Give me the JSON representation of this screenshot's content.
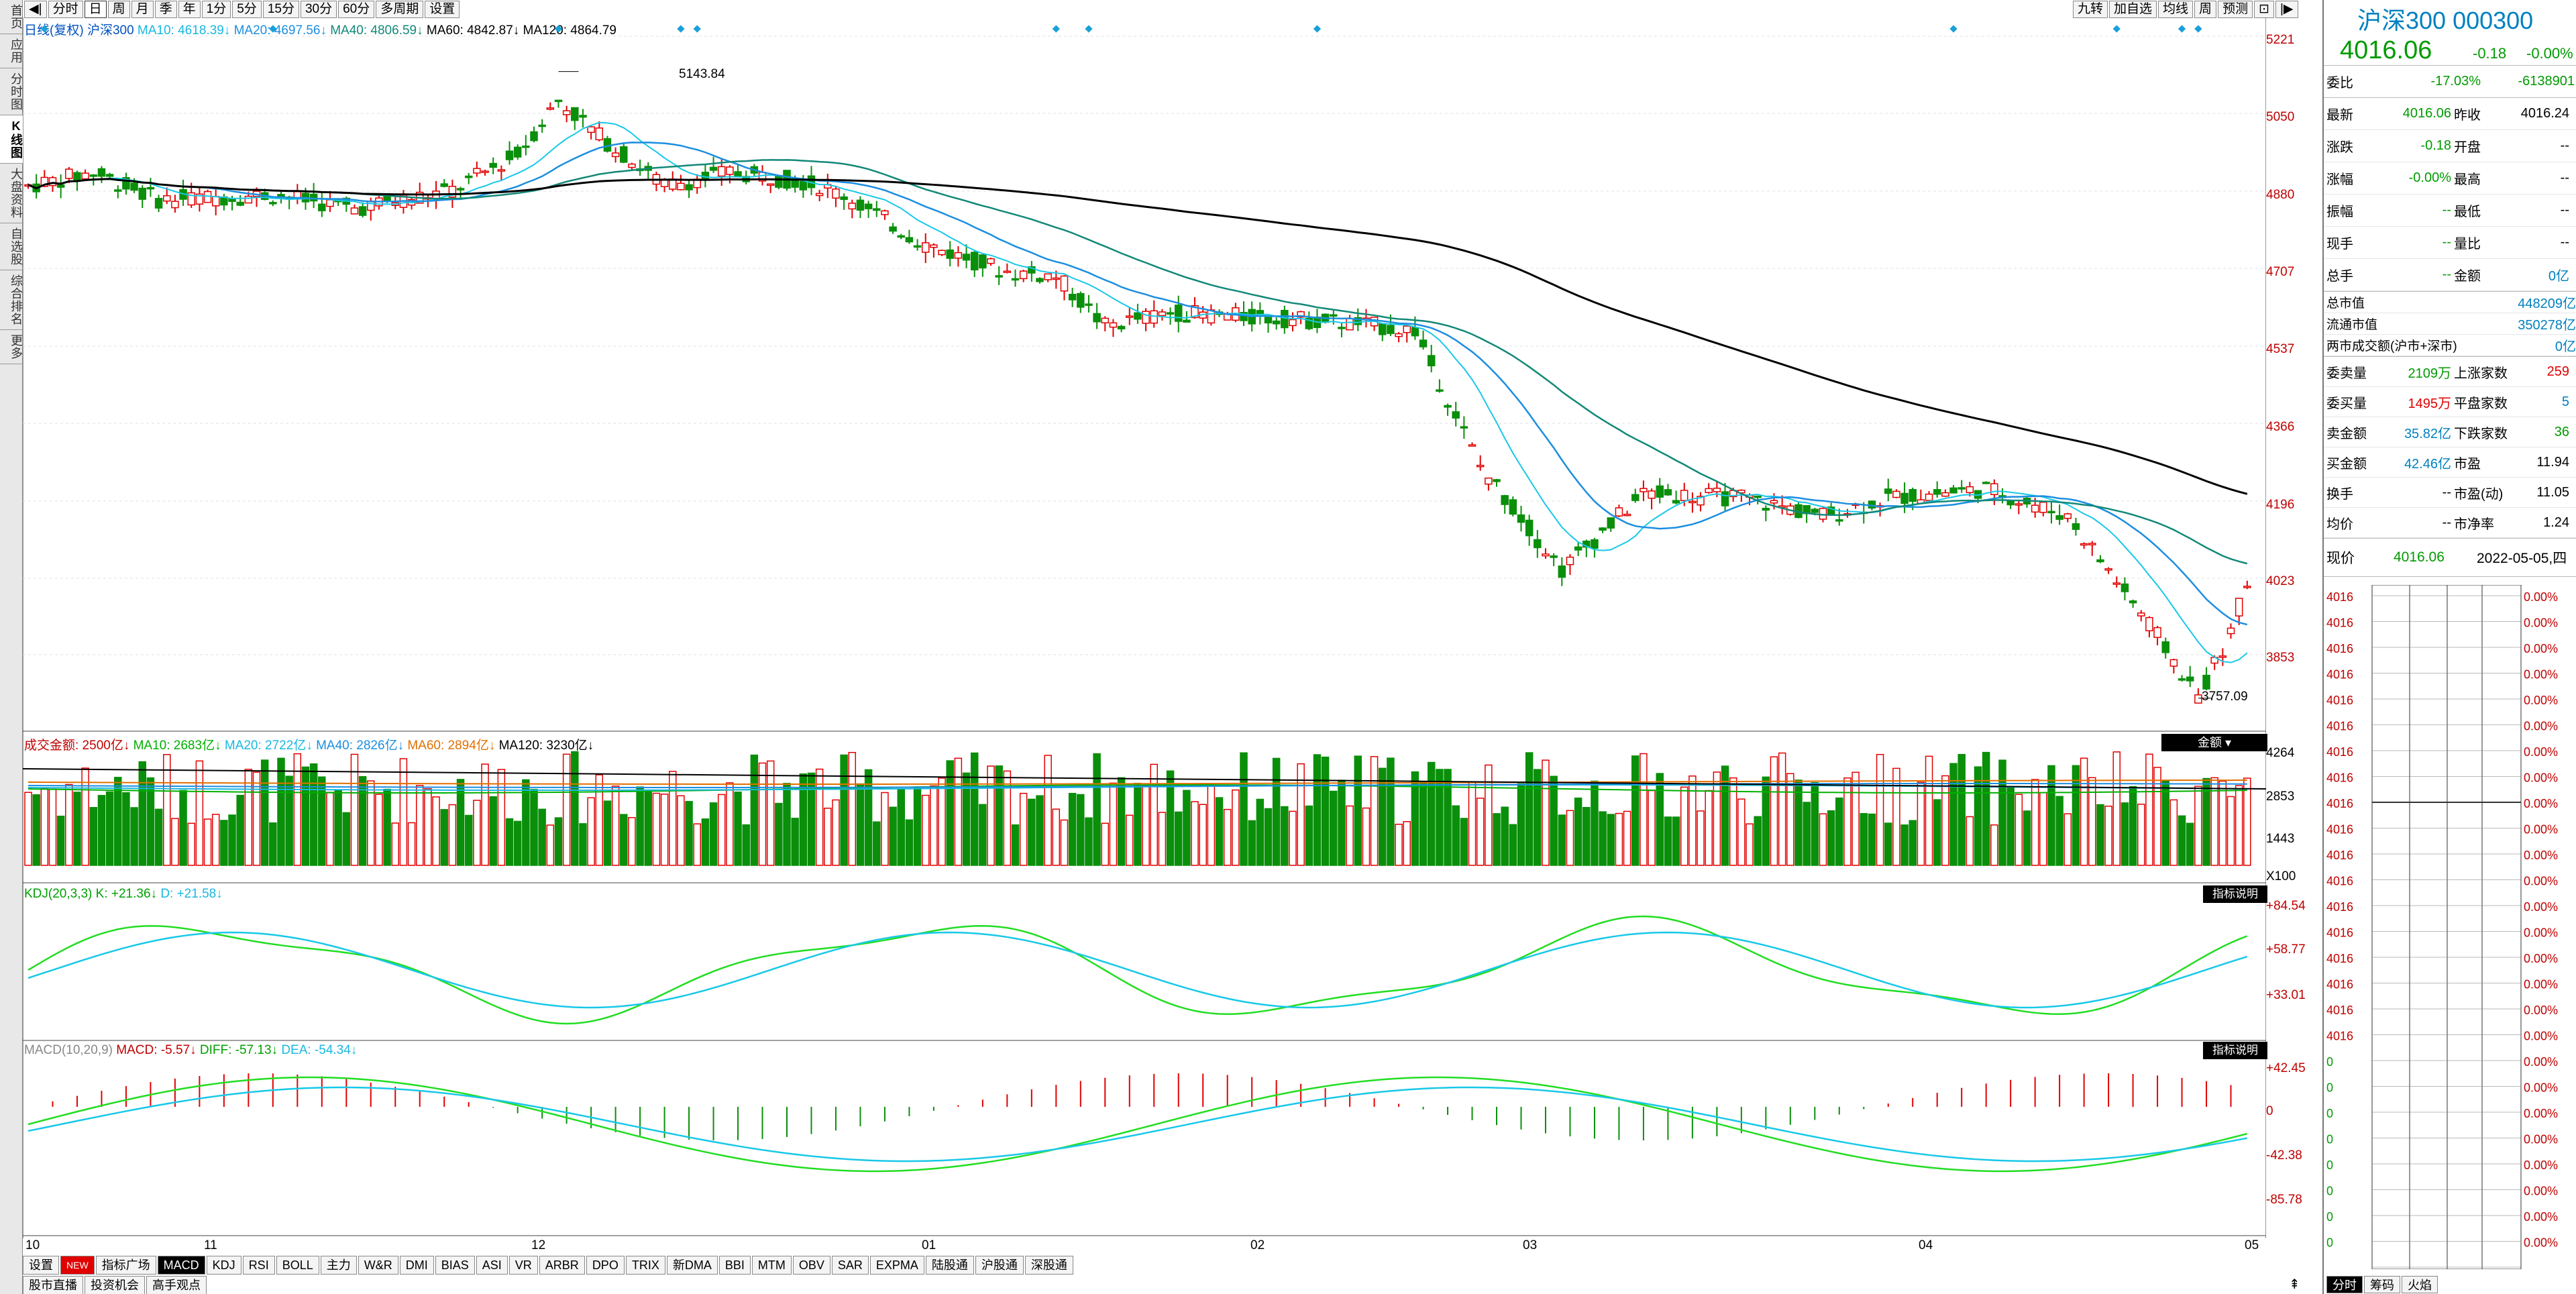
{
  "left_tabs": [
    "首页",
    "应用",
    "分时图",
    "K线图",
    "大盘资料",
    "自选股",
    "综合排名",
    "更多"
  ],
  "top_toolbar": {
    "periods": [
      "分时",
      "日",
      "周",
      "月",
      "季",
      "年",
      "1分",
      "5分",
      "15分",
      "30分",
      "60分",
      "多周期",
      "设置"
    ],
    "selected": "日",
    "right_buttons": [
      "九转",
      "加自选",
      "均线",
      "周",
      "预测"
    ]
  },
  "main_legend": {
    "prefix": "日线(复权)",
    "name": "沪深300",
    "ma10": "MA10: 4618.39",
    "ma20": "MA20: 4697.56",
    "ma40": "MA40: 4806.59",
    "ma60": "MA60: 4842.87",
    "ma120": "MA120: 4864.79"
  },
  "price_axis": [
    "5221",
    "5050",
    "4880",
    "4707",
    "4537",
    "4366",
    "4196",
    "4023",
    "3853"
  ],
  "annotations": {
    "high": "5143.84",
    "low": "3757.09"
  },
  "volume_legend": {
    "title": "成交金额: 2500亿",
    "ma10": "MA10: 2683亿",
    "ma20": "MA20: 2722亿",
    "ma40": "MA40: 2826亿",
    "ma60": "MA60: 2894亿",
    "ma120": "MA120: 3230亿",
    "button": "金额"
  },
  "volume_axis": [
    "4264",
    "2853",
    "1443",
    "X100"
  ],
  "kdj_legend": {
    "title": "KDJ(20,3,3)",
    "k": "K: +21.36",
    "d": "D: +21.58",
    "button": "指标说明"
  },
  "kdj_axis": [
    "+84.54",
    "+58.77",
    "+33.01"
  ],
  "macd_legend": {
    "title": "MACD(10,20,9)",
    "macd": "MACD: -5.57",
    "diff": "DIFF: -57.13",
    "dea": "DEA: -54.34",
    "button": "指标说明"
  },
  "macd_axis": [
    "+42.45",
    "0",
    "-42.38",
    "-85.78"
  ],
  "date_axis": [
    "10",
    "11",
    "12",
    "01",
    "02",
    "03",
    "04",
    "05"
  ],
  "indicator_tabs": [
    "设置",
    "NEW",
    "指标广场",
    "MACD",
    "KDJ",
    "RSI",
    "BOLL",
    "主力",
    "W&R",
    "DMI",
    "BIAS",
    "ASI",
    "VR",
    "ARBR",
    "DPO",
    "TRIX",
    "新DMA",
    "BBI",
    "MTM",
    "OBV",
    "SAR",
    "EXPMA",
    "陆股通",
    "沪股通",
    "深股通"
  ],
  "indicator_selected": "MACD",
  "bottom_links": [
    "股市直播",
    "投资机会",
    "高手观点"
  ],
  "quote": {
    "title": "沪深300 000300",
    "price": "4016.06",
    "change": "-0.18",
    "pct": "-0.00%",
    "weibi_label": "委比",
    "weibi_pct": "-17.03%",
    "weibi_val": "-6138901",
    "rows": [
      [
        "最新",
        "4016.06",
        "昨收",
        "4016.24"
      ],
      [
        "涨跌",
        "-0.18",
        "开盘",
        "--"
      ],
      [
        "涨幅",
        "-0.00%",
        "最高",
        "--"
      ],
      [
        "振幅",
        "--",
        "最低",
        "--"
      ],
      [
        "现手",
        "--",
        "量比",
        "--"
      ],
      [
        "总手",
        "--",
        "金额",
        "0亿"
      ]
    ],
    "cap": [
      [
        "总市值",
        "448209亿"
      ],
      [
        "流通市值",
        "350278亿"
      ],
      [
        "两市成交额(沪市+深市)",
        "0亿"
      ]
    ],
    "rows2": [
      [
        "委卖量",
        "2109万",
        "上涨家数",
        "259"
      ],
      [
        "委买量",
        "1495万",
        "平盘家数",
        "5"
      ],
      [
        "卖金额",
        "35.82亿",
        "下跌家数",
        "36"
      ],
      [
        "买金额",
        "42.46亿",
        "市盈",
        "11.94"
      ],
      [
        "换手",
        "--",
        "市盈(动)",
        "11.05"
      ],
      [
        "均价",
        "--",
        "市净率",
        "1.24"
      ]
    ],
    "now_label": "现价",
    "now_price": "4016.06",
    "date": "2022-05-05,四",
    "mini_left": [
      "4016",
      "4016",
      "4016",
      "4016",
      "4016",
      "4016",
      "4016",
      "4016",
      "4016",
      "4016",
      "4016",
      "4016",
      "4016",
      "4016",
      "4016",
      "4016",
      "4016",
      "4016",
      "0",
      "0",
      "0",
      "0",
      "0",
      "0",
      "0",
      "0"
    ],
    "mini_right": [
      "0.00%",
      "0.00%",
      "0.00%",
      "0.00%",
      "0.00%",
      "0.00%",
      "0.00%",
      "0.00%",
      "0.00%",
      "0.00%",
      "0.00%",
      "0.00%",
      "0.00%",
      "0.00%",
      "0.00%",
      "0.00%",
      "0.00%",
      "0.00%",
      "0.00%",
      "0.00%",
      "0.00%",
      "0.00%",
      "0.00%",
      "0.00%",
      "0.00%",
      "0.00%"
    ],
    "bottom_tabs": [
      "分时",
      "筹码",
      "火焰"
    ]
  },
  "colors": {
    "up": "#e10000",
    "down": "#0a8f0a",
    "ma10": "#18c8e8",
    "ma20": "#1c8ee0",
    "ma40": "#128878",
    "ma120": "#000000"
  }
}
